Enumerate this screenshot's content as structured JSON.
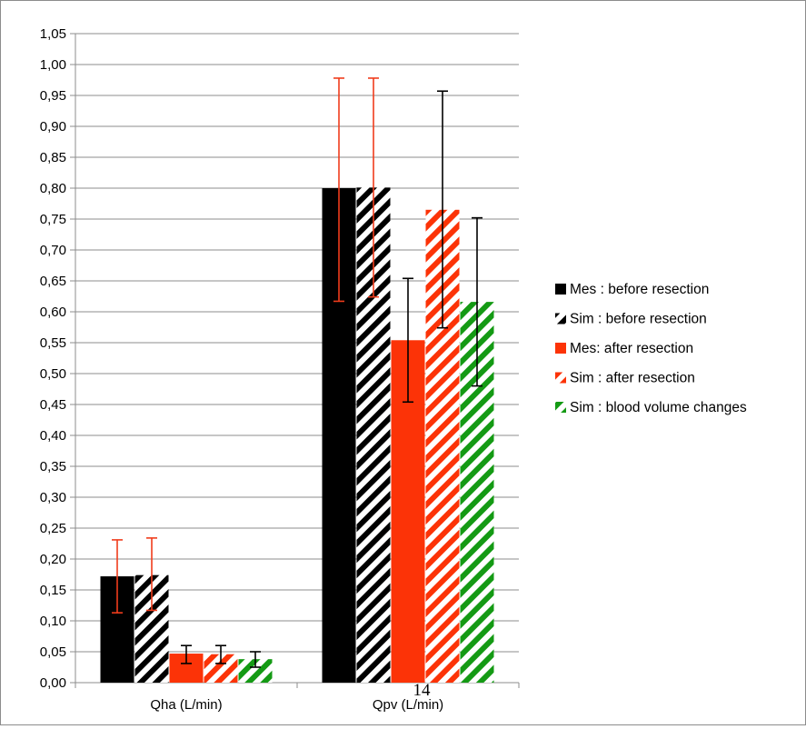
{
  "chart_data": {
    "type": "bar",
    "categories": [
      "Qha (L/min)",
      "Qpv (L/min)"
    ],
    "ylim": [
      0,
      1.05
    ],
    "ytick_step": 0.05,
    "decimal_separator": ",",
    "grid": true,
    "legend_position": "right",
    "page_number": "14",
    "series": [
      {
        "name": "Mes : before resection",
        "values": [
          0.172,
          0.8
        ],
        "err_low": [
          0.113,
          0.617
        ],
        "err_high": [
          0.231,
          0.978
        ],
        "color": "#000000",
        "pattern": "solid",
        "error_color": "#f03c1c"
      },
      {
        "name": "Sim : before resection",
        "values": [
          0.174,
          0.801
        ],
        "err_low": [
          0.117,
          0.624
        ],
        "err_high": [
          0.234,
          0.978
        ],
        "color": "#000000",
        "pattern": "hatched",
        "error_color": "#f03c1c"
      },
      {
        "name": "Mes: after resection",
        "values": [
          0.047,
          0.554
        ],
        "err_low": [
          0.031,
          0.454
        ],
        "err_high": [
          0.06,
          0.654
        ],
        "color": "#fc3307",
        "pattern": "solid",
        "error_color": "#000000"
      },
      {
        "name": "Sim : after resection",
        "values": [
          0.046,
          0.765
        ],
        "err_low": [
          0.031,
          0.574
        ],
        "err_high": [
          0.06,
          0.957
        ],
        "color": "#fc3307",
        "pattern": "hatched",
        "error_color": "#000000"
      },
      {
        "name": "Sim : blood volume changes",
        "values": [
          0.038,
          0.616
        ],
        "err_low": [
          0.025,
          0.48
        ],
        "err_high": [
          0.05,
          0.752
        ],
        "color": "#149a14",
        "pattern": "hatched",
        "error_color": "#000000"
      }
    ]
  }
}
